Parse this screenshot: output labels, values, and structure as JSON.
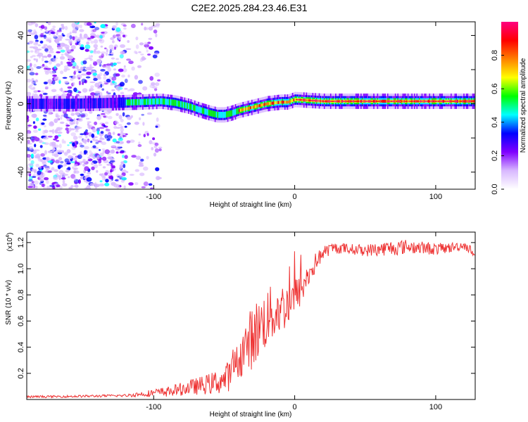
{
  "page": {
    "title": "C2E2.2025.284.23.46.E31"
  },
  "chart_data": [
    {
      "type": "heatmap",
      "title": "C2E2.2025.284.23.46.E31",
      "xlabel": "Height of straight line (km)",
      "ylabel": "Frequency (Hz)",
      "xlim": [
        -190,
        128
      ],
      "ylim": [
        -50,
        48
      ],
      "xticks": [
        -100,
        0,
        100
      ],
      "xtick_labels": [
        "-100",
        "0",
        "100"
      ],
      "yticks": [
        -40,
        -20,
        0,
        20,
        40
      ],
      "ytick_labels": [
        "-40",
        "-20",
        "0",
        "20",
        "40"
      ],
      "ridge": {
        "x": [
          -190,
          -160,
          -130,
          -110,
          -95,
          -85,
          -75,
          -68,
          -60,
          -55,
          -50,
          -45,
          -40,
          -35,
          -30,
          -25,
          -20,
          -15,
          -10,
          -5,
          0,
          10,
          20,
          40,
          60,
          80,
          100,
          128
        ],
        "freq": [
          0,
          0,
          0.5,
          1,
          1.5,
          0.5,
          -1.5,
          -3.5,
          -5.5,
          -6.5,
          -6.5,
          -5.5,
          -4,
          -3,
          -2,
          -1,
          0,
          0.5,
          1,
          1,
          2.5,
          2,
          1.5,
          1.5,
          1.5,
          1.5,
          1.5,
          1.5
        ]
      },
      "colorbar": {
        "label": "Normalized spectral amplitude",
        "range": [
          0,
          1
        ],
        "ticks": [
          0.0,
          0.2,
          0.4,
          0.6,
          0.8
        ],
        "tick_labels": [
          "0.0",
          "0.2",
          "0.4",
          "0.6",
          "0.8"
        ],
        "colors": [
          "#ffffff",
          "#d8b8ff",
          "#8000ff",
          "#0000ff",
          "#00ffff",
          "#00ff00",
          "#ffff00",
          "#ff8000",
          "#ff0000",
          "#ff0080"
        ]
      }
    },
    {
      "type": "line",
      "xlabel": "Height of straight line (km)",
      "ylabel": "SNR (10 * v/v)",
      "scale_note": "(x10",
      "scale_exp": "4",
      "scale_close": ")",
      "xlim": [
        -190,
        128
      ],
      "ylim": [
        0.0,
        1.28
      ],
      "xticks": [
        -100,
        0,
        100
      ],
      "xtick_labels": [
        "-100",
        "0",
        "100"
      ],
      "yticks": [
        0.2,
        0.4,
        0.6,
        0.8,
        1.0,
        1.2
      ],
      "ytick_labels": [
        "0.2",
        "0.4",
        "0.6",
        "0.8",
        "1.0",
        "1.2"
      ],
      "series": [
        {
          "name": "SNR",
          "color": "#ee3333",
          "baseline": {
            "x": [
              -190,
              -150,
              -120,
              -100,
              -90,
              -80,
              -70,
              -60,
              -50,
              -45,
              -40,
              -35,
              -30,
              -25,
              -20,
              -15,
              -10,
              -5,
              0,
              5,
              10,
              15,
              20,
              25,
              30,
              40,
              50,
              60,
              70,
              80,
              90,
              100,
              110,
              120,
              128
            ],
            "y": [
              0.02,
              0.025,
              0.03,
              0.05,
              0.06,
              0.08,
              0.1,
              0.12,
              0.15,
              0.2,
              0.3,
              0.4,
              0.48,
              0.55,
              0.62,
              0.66,
              0.7,
              0.72,
              0.78,
              0.85,
              0.95,
              1.05,
              1.12,
              1.15,
              1.16,
              1.15,
              1.14,
              1.15,
              1.16,
              1.17,
              1.16,
              1.15,
              1.16,
              1.18,
              1.12
            ]
          },
          "noise": {
            "x": [
              -190,
              -120,
              -100,
              -80,
              -60,
              -40,
              -30,
              -15,
              0,
              10,
              20,
              40,
              70,
              90,
              110,
              128
            ],
            "amp": [
              0.008,
              0.01,
              0.03,
              0.05,
              0.08,
              0.14,
              0.25,
              0.22,
              0.15,
              0.1,
              0.05,
              0.04,
              0.06,
              0.05,
              0.04,
              0.03
            ]
          }
        }
      ]
    }
  ]
}
